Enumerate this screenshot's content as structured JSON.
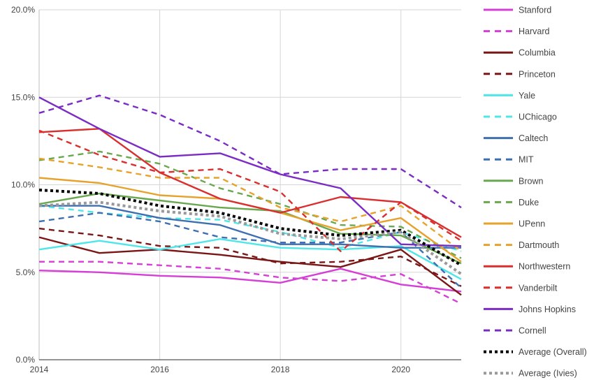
{
  "chart_data": {
    "type": "line",
    "title": "",
    "xlabel": "",
    "ylabel": "",
    "xlim": [
      2014,
      2021
    ],
    "ylim": [
      0,
      20
    ],
    "x": [
      2014,
      2015,
      2016,
      2017,
      2018,
      2019,
      2020,
      2021
    ],
    "x_ticks": [
      {
        "value": 2014,
        "label": "2014"
      },
      {
        "value": 2016,
        "label": "2016"
      },
      {
        "value": 2018,
        "label": "2018"
      },
      {
        "value": 2020,
        "label": "2020"
      }
    ],
    "y_ticks": [
      {
        "value": 0,
        "label": "0.0%"
      },
      {
        "value": 5,
        "label": "5.0%"
      },
      {
        "value": 10,
        "label": "10.0%"
      },
      {
        "value": 15,
        "label": "15.0%"
      },
      {
        "value": 20,
        "label": "20.0%"
      }
    ],
    "grid": true,
    "legend_position": "right",
    "series": [
      {
        "name": "Stanford",
        "color": "#d63fd6",
        "dash": "solid",
        "values": [
          5.1,
          5.0,
          4.8,
          4.7,
          4.4,
          5.2,
          4.3,
          3.9
        ]
      },
      {
        "name": "Harvard",
        "color": "#d63fd6",
        "dash": "dashed",
        "values": [
          5.6,
          5.6,
          5.4,
          5.2,
          4.7,
          4.5,
          4.9,
          3.2
        ]
      },
      {
        "name": "Columbia",
        "color": "#7a1616",
        "dash": "solid",
        "values": [
          7.0,
          6.1,
          6.3,
          6.0,
          5.6,
          5.3,
          6.3,
          3.7
        ]
      },
      {
        "name": "Princeton",
        "color": "#7a1616",
        "dash": "dashed",
        "values": [
          7.5,
          7.1,
          6.5,
          6.4,
          5.5,
          5.6,
          5.9,
          4.2
        ]
      },
      {
        "name": "Yale",
        "color": "#4ee6e8",
        "dash": "solid",
        "values": [
          6.3,
          6.8,
          6.3,
          6.9,
          6.4,
          6.3,
          6.5,
          4.6
        ]
      },
      {
        "name": "UChicago",
        "color": "#4ee6e8",
        "dash": "dashed",
        "values": [
          8.8,
          8.4,
          8.1,
          8.0,
          7.3,
          6.4,
          7.3,
          6.2
        ]
      },
      {
        "name": "Caltech",
        "color": "#3e6fb0",
        "dash": "solid",
        "values": [
          8.8,
          8.8,
          8.1,
          7.7,
          6.6,
          6.6,
          6.4,
          6.4
        ]
      },
      {
        "name": "MIT",
        "color": "#3e6fb0",
        "dash": "dashed",
        "values": [
          7.9,
          8.4,
          7.9,
          7.0,
          6.7,
          6.7,
          7.3,
          4.1
        ]
      },
      {
        "name": "Brown",
        "color": "#6aa84f",
        "dash": "solid",
        "values": [
          8.9,
          9.5,
          9.1,
          8.7,
          8.5,
          7.2,
          7.1,
          5.5
        ]
      },
      {
        "name": "Duke",
        "color": "#6aa84f",
        "dash": "dashed",
        "values": [
          11.4,
          11.9,
          11.2,
          9.8,
          8.9,
          7.7,
          7.6,
          5.8
        ]
      },
      {
        "name": "UPenn",
        "color": "#e6a22a",
        "dash": "solid",
        "values": [
          10.4,
          10.1,
          9.4,
          9.2,
          8.4,
          7.4,
          8.1,
          5.6
        ]
      },
      {
        "name": "Dartmouth",
        "color": "#e6a22a",
        "dash": "dashed",
        "values": [
          11.5,
          11.0,
          10.4,
          10.4,
          8.7,
          7.9,
          8.8,
          6.2
        ]
      },
      {
        "name": "Northwestern",
        "color": "#d92f2f",
        "dash": "solid",
        "values": [
          13.0,
          13.2,
          10.7,
          9.2,
          8.4,
          9.3,
          9.0,
          7.0
        ]
      },
      {
        "name": "Vanderbilt",
        "color": "#d92f2f",
        "dash": "dashed",
        "values": [
          13.1,
          11.7,
          10.7,
          10.9,
          9.6,
          6.2,
          9.0,
          6.8
        ]
      },
      {
        "name": "Johns Hopkins",
        "color": "#7b2cc4",
        "dash": "solid",
        "values": [
          15.0,
          13.2,
          11.6,
          11.8,
          10.6,
          9.8,
          6.6,
          6.5
        ]
      },
      {
        "name": "Cornell",
        "color": "#7b2cc4",
        "dash": "dashed",
        "values": [
          14.1,
          15.1,
          14.0,
          12.5,
          10.6,
          10.9,
          10.9,
          8.7
        ]
      },
      {
        "name": "Average (Overall)",
        "color": "#000000",
        "dash": "dotted",
        "values": [
          9.7,
          9.5,
          8.8,
          8.4,
          7.5,
          7.1,
          7.4,
          5.4
        ]
      },
      {
        "name": "Average (Ivies)",
        "color": "#999999",
        "dash": "dotted",
        "values": [
          8.8,
          9.0,
          8.5,
          8.2,
          7.2,
          6.9,
          7.3,
          4.9
        ]
      }
    ]
  }
}
